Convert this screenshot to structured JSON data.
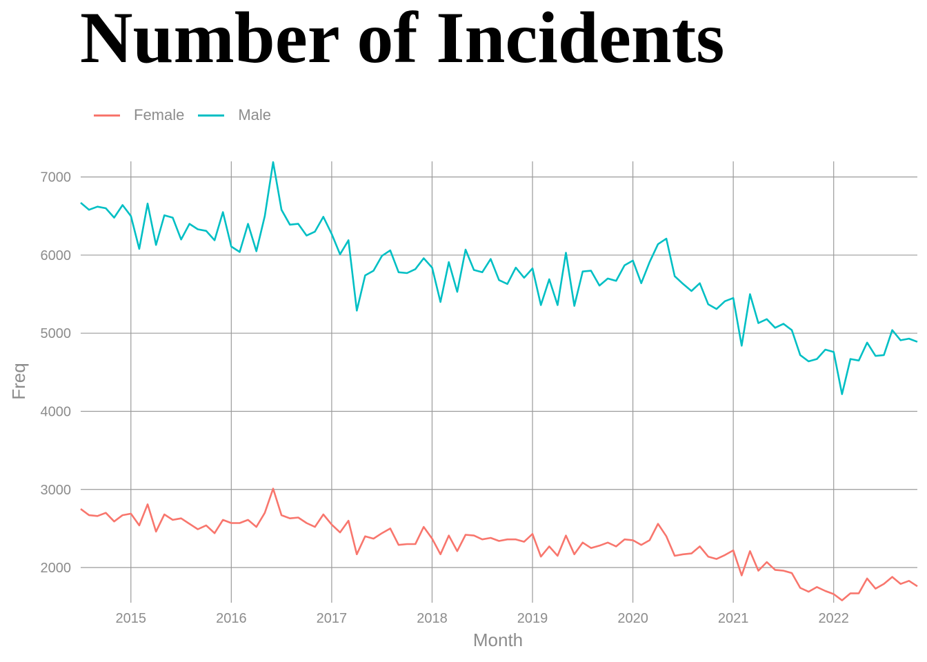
{
  "chart_data": {
    "type": "line",
    "title": "Number of Incidents",
    "xlabel": "Month",
    "ylabel": "Freq",
    "xlim": [
      "2014-07",
      "2022-11"
    ],
    "ylim": [
      1550,
      7200
    ],
    "x_ticks": [
      "2015",
      "2016",
      "2017",
      "2018",
      "2019",
      "2020",
      "2021",
      "2022"
    ],
    "y_ticks": [
      2000,
      3000,
      4000,
      5000,
      6000,
      7000
    ],
    "grid": true,
    "legend_position": "top-left",
    "x": [
      "2014-07",
      "2014-08",
      "2014-09",
      "2014-10",
      "2014-11",
      "2014-12",
      "2015-01",
      "2015-02",
      "2015-03",
      "2015-04",
      "2015-05",
      "2015-06",
      "2015-07",
      "2015-08",
      "2015-09",
      "2015-10",
      "2015-11",
      "2015-12",
      "2016-01",
      "2016-02",
      "2016-03",
      "2016-04",
      "2016-05",
      "2016-06",
      "2016-07",
      "2016-08",
      "2016-09",
      "2016-10",
      "2016-11",
      "2016-12",
      "2017-01",
      "2017-02",
      "2017-03",
      "2017-04",
      "2017-05",
      "2017-06",
      "2017-07",
      "2017-08",
      "2017-09",
      "2017-10",
      "2017-11",
      "2017-12",
      "2018-01",
      "2018-02",
      "2018-03",
      "2018-04",
      "2018-05",
      "2018-06",
      "2018-07",
      "2018-08",
      "2018-09",
      "2018-10",
      "2018-11",
      "2018-12",
      "2019-01",
      "2019-02",
      "2019-03",
      "2019-04",
      "2019-05",
      "2019-06",
      "2019-07",
      "2019-08",
      "2019-09",
      "2019-10",
      "2019-11",
      "2019-12",
      "2020-01",
      "2020-02",
      "2020-03",
      "2020-04",
      "2020-05",
      "2020-06",
      "2020-07",
      "2020-08",
      "2020-09",
      "2020-10",
      "2020-11",
      "2020-12",
      "2021-01",
      "2021-02",
      "2021-03",
      "2021-04",
      "2021-05",
      "2021-06",
      "2021-07",
      "2021-08",
      "2021-09",
      "2021-10",
      "2021-11",
      "2021-12",
      "2022-01",
      "2022-02",
      "2022-03",
      "2022-04",
      "2022-05",
      "2022-06",
      "2022-07",
      "2022-08",
      "2022-09",
      "2022-10",
      "2022-11"
    ],
    "series": [
      {
        "name": "Female",
        "color": "#F8766D",
        "values": [
          2750,
          2670,
          2660,
          2700,
          2590,
          2670,
          2690,
          2540,
          2810,
          2460,
          2680,
          2610,
          2630,
          2560,
          2490,
          2540,
          2440,
          2610,
          2570,
          2570,
          2610,
          2520,
          2700,
          3010,
          2670,
          2630,
          2640,
          2570,
          2520,
          2680,
          2550,
          2450,
          2600,
          2170,
          2400,
          2370,
          2440,
          2500,
          2290,
          2300,
          2300,
          2520,
          2370,
          2170,
          2410,
          2210,
          2420,
          2410,
          2360,
          2380,
          2340,
          2360,
          2360,
          2330,
          2430,
          2140,
          2270,
          2150,
          2410,
          2170,
          2320,
          2250,
          2280,
          2320,
          2270,
          2360,
          2350,
          2290,
          2350,
          2560,
          2400,
          2150,
          2170,
          2180,
          2270,
          2140,
          2110,
          2160,
          2220,
          1900,
          2210,
          1960,
          2070,
          1970,
          1960,
          1930,
          1740,
          1690,
          1750,
          1700,
          1660,
          1580,
          1670,
          1670,
          1860,
          1730,
          1790,
          1880,
          1790,
          1830,
          1760
        ]
      },
      {
        "name": "Male",
        "color": "#00BFC4",
        "values": [
          6670,
          6580,
          6620,
          6600,
          6480,
          6640,
          6500,
          6080,
          6660,
          6130,
          6510,
          6480,
          6200,
          6400,
          6330,
          6310,
          6190,
          6550,
          6110,
          6040,
          6400,
          6050,
          6500,
          7190,
          6580,
          6390,
          6400,
          6250,
          6300,
          6490,
          6270,
          6010,
          6190,
          5290,
          5740,
          5800,
          5990,
          6060,
          5780,
          5770,
          5820,
          5960,
          5840,
          5400,
          5910,
          5530,
          6070,
          5810,
          5780,
          5950,
          5680,
          5630,
          5840,
          5710,
          5830,
          5360,
          5690,
          5360,
          6030,
          5350,
          5790,
          5800,
          5610,
          5700,
          5670,
          5870,
          5930,
          5640,
          5910,
          6140,
          6210,
          5730,
          5630,
          5540,
          5640,
          5370,
          5310,
          5410,
          5450,
          4840,
          5500,
          5130,
          5180,
          5070,
          5120,
          5040,
          4720,
          4640,
          4670,
          4790,
          4760,
          4220,
          4670,
          4650,
          4880,
          4710,
          4720,
          5040,
          4910,
          4930,
          4890
        ]
      }
    ]
  }
}
